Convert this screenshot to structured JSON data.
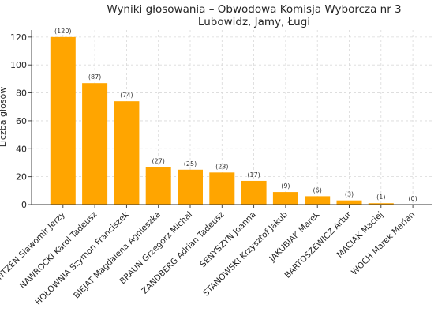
{
  "chart_data": {
    "type": "bar",
    "title": "Wyniki głosowania – Obwodowa Komisja Wyborcza nr 3",
    "subtitle": "Lubowidz, Jamy, Ługi",
    "xlabel": "",
    "ylabel": "Liczba głosów",
    "ylim": [
      0,
      125
    ],
    "yticks": [
      0,
      20,
      40,
      60,
      80,
      100,
      120
    ],
    "grid": true,
    "bar_color": "#FFA500",
    "categories": [
      "MENTZEN Sławomir Jerzy",
      "NAWROCKI Karol Tadeusz",
      "HOŁOWNIA Szymon Franciszek",
      "BIEJAT Magdalena Agnieszka",
      "BRAUN Grzegorz Michał",
      "ZANDBERG Adrian Tadeusz",
      "SENYSZYN Joanna",
      "STANOWSKI Krzysztof Jakub",
      "JAKUBIAK Marek",
      "BARTOSZEWICZ Artur",
      "MACIAK Maciej",
      "WOCH Marek Marian"
    ],
    "values": [
      120,
      87,
      74,
      27,
      25,
      23,
      17,
      9,
      6,
      3,
      1,
      0
    ],
    "data_labels": [
      "(120)",
      "(87)",
      "(74)",
      "(27)",
      "(25)",
      "(23)",
      "(17)",
      "(9)",
      "(6)",
      "(3)",
      "(1)",
      "(0)"
    ]
  }
}
